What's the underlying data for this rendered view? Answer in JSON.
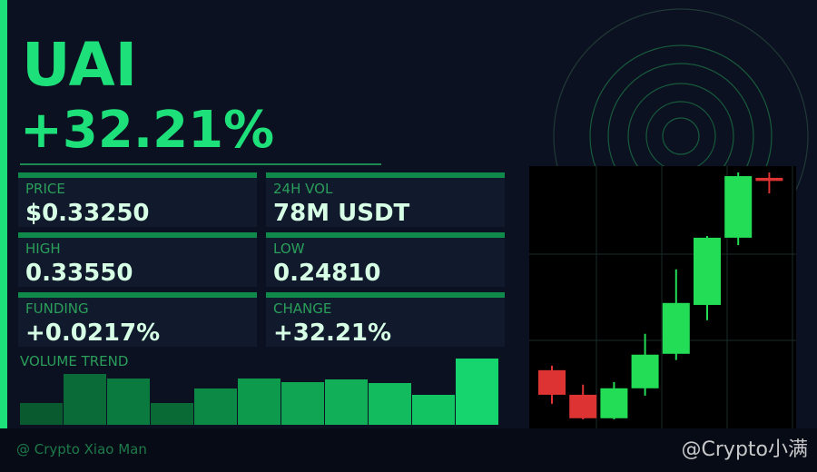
{
  "header": {
    "symbol": "UAI",
    "change": "+32.21%"
  },
  "stats": [
    {
      "label": "PRICE",
      "value": "$0.33250"
    },
    {
      "label": "24H VOL",
      "value": "78M USDT"
    },
    {
      "label": "HIGH",
      "value": "0.33550"
    },
    {
      "label": "LOW",
      "value": "0.24810"
    },
    {
      "label": "FUNDING",
      "value": "+0.0217%"
    },
    {
      "label": "CHANGE",
      "value": "+32.21%"
    }
  ],
  "volume_trend": {
    "label": "VOLUME TREND",
    "values": [
      24,
      56,
      51,
      24,
      40,
      51,
      47,
      50,
      46,
      33,
      73
    ],
    "colors": [
      "#0a5a30",
      "#0b6b38",
      "#0b7a3e",
      "#0a6a36",
      "#0c8a45",
      "#0e9a4d",
      "#10a553",
      "#11b058",
      "#12bb5e",
      "#13c463",
      "#16d46e"
    ]
  },
  "candles": {
    "type": "candlestick",
    "up_color": "#22dd55",
    "down_color": "#dd3333",
    "open": [
      0.2655,
      0.2568,
      0.2485,
      0.2591,
      0.2713,
      0.2886,
      0.3124,
      0.3336
    ],
    "high": [
      0.2671,
      0.2604,
      0.2613,
      0.2784,
      0.3012,
      0.313,
      0.3355,
      0.3355
    ],
    "low": [
      0.2536,
      0.2481,
      0.2481,
      0.2565,
      0.2691,
      0.2832,
      0.3098,
      0.3281
    ],
    "close": [
      0.2568,
      0.2485,
      0.2591,
      0.271,
      0.2893,
      0.3124,
      0.3342,
      0.3325
    ]
  },
  "footer": {
    "author": "@ Crypto Xiao Man",
    "watermark": "@Crypto小满"
  }
}
